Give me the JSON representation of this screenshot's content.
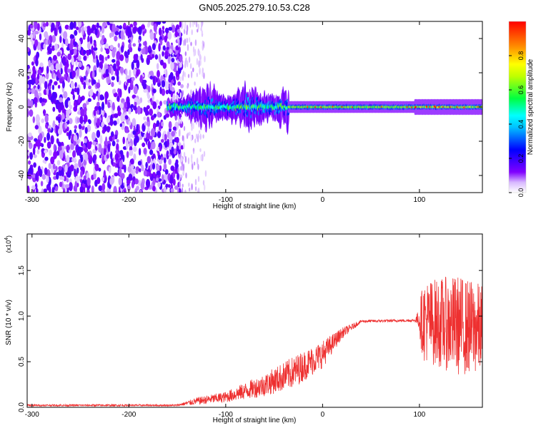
{
  "title": "GN05.2025.279.10.53.C28",
  "chart_data": [
    {
      "type": "heatmap",
      "name": "spectrogram",
      "xlabel": "Height of straight line (km)",
      "ylabel": "Frequency (Hz)",
      "xlim": [
        -305,
        165
      ],
      "ylim": [
        -50,
        50
      ],
      "xticks": [
        -300,
        -200,
        -100,
        0,
        100
      ],
      "yticks": [
        -40,
        -20,
        0,
        20,
        40
      ],
      "colorbar": {
        "label": "Normalized spectral amplitude",
        "range": [
          0,
          1
        ],
        "ticks": [
          "0.0",
          "0.2",
          "0.4",
          "0.6",
          "0.8"
        ],
        "tick_values": [
          0,
          0.2,
          0.4,
          0.6,
          0.8
        ],
        "colors": [
          "#ffffff",
          "#8000ff",
          "#0000ff",
          "#00ffff",
          "#00ff00",
          "#ffff00",
          "#ff8000",
          "#ff0000"
        ]
      },
      "regions": [
        {
          "x_range": [
            -305,
            -140
          ],
          "description_level": 0.25,
          "spread_hz": 50
        },
        {
          "x_range": [
            -140,
            -35
          ],
          "description_level": 0.45,
          "spread_hz": 10
        },
        {
          "x_range": [
            -35,
            95
          ],
          "description_level": 0.6,
          "spread_hz": 3
        },
        {
          "x_range": [
            95,
            165
          ],
          "description_level": 0.55,
          "spread_hz": 4
        }
      ]
    },
    {
      "type": "line",
      "name": "snr",
      "xlabel": "Height of straight line (km)",
      "ylabel": "SNR (10 * v/v)",
      "multiplier": "(x10",
      "multiplier_exp": "4",
      "multiplier_close": ")",
      "xlim": [
        -305,
        165
      ],
      "ylim": [
        0,
        1.9
      ],
      "xticks": [
        -300,
        -200,
        -100,
        0,
        100
      ],
      "yticks": [
        "0.0",
        "0.5",
        "1.0",
        "1.5"
      ],
      "ytick_values": [
        0,
        0.5,
        1.0,
        1.5
      ],
      "color": "#ee3030",
      "envelope": [
        {
          "x": -305,
          "base": 0.02,
          "noise": 0.02
        },
        {
          "x": -150,
          "base": 0.02,
          "noise": 0.02
        },
        {
          "x": -130,
          "base": 0.06,
          "noise": 0.08
        },
        {
          "x": -100,
          "base": 0.1,
          "noise": 0.12
        },
        {
          "x": -60,
          "base": 0.22,
          "noise": 0.25
        },
        {
          "x": -30,
          "base": 0.35,
          "noise": 0.35
        },
        {
          "x": 0,
          "base": 0.55,
          "noise": 0.3
        },
        {
          "x": 20,
          "base": 0.8,
          "noise": 0.12
        },
        {
          "x": 40,
          "base": 0.94,
          "noise": 0.03
        },
        {
          "x": 95,
          "base": 0.95,
          "noise": 0.03
        },
        {
          "x": 105,
          "base": 0.95,
          "noise": 0.45
        },
        {
          "x": 140,
          "base": 0.9,
          "noise": 0.55
        },
        {
          "x": 165,
          "base": 0.85,
          "noise": 0.5
        }
      ]
    }
  ]
}
